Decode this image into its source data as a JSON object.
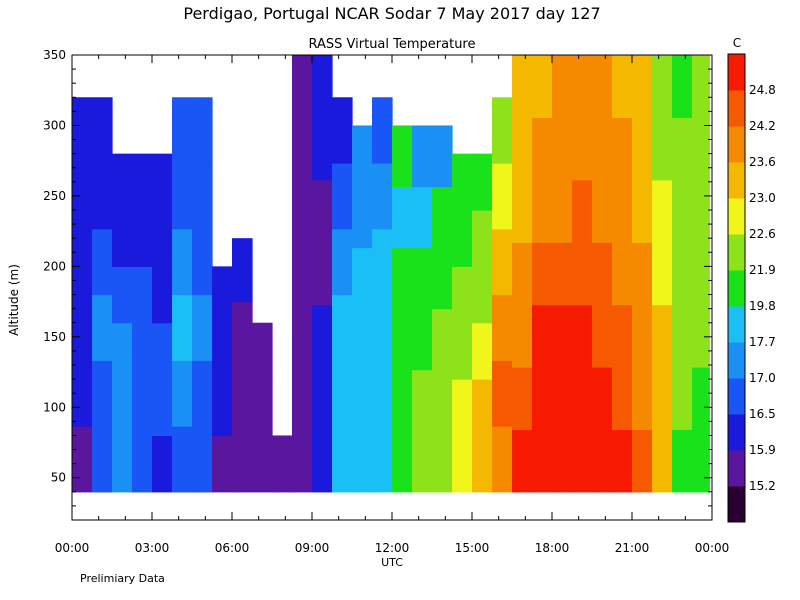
{
  "chart_data": {
    "type": "heatmap",
    "title": "Perdigao, Portugal  NCAR Sodar   7 May 2017  day 127",
    "subtitle": "RASS Virtual Temperature",
    "xlabel": "UTC",
    "ylabel": "Altitude (m)",
    "footnote": "Prelimiary Data",
    "xlim": [
      0,
      24
    ],
    "ylim": [
      20,
      350
    ],
    "x_ticks": [
      "00:00",
      "03:00",
      "06:00",
      "09:00",
      "12:00",
      "15:00",
      "18:00",
      "21:00",
      "00:00"
    ],
    "y_ticks": [
      50,
      100,
      150,
      200,
      250,
      300,
      350
    ],
    "colorbar": {
      "unit": "C",
      "labels": [
        "15.2",
        "15.9",
        "16.5",
        "17.0",
        "17.7",
        "19.8",
        "21.9",
        "22.6",
        "23.0",
        "23.6",
        "24.2",
        "24.8"
      ],
      "colors": [
        "#2a0033",
        "#5a169e",
        "#1a1adc",
        "#1a55f5",
        "#1a90f5",
        "#1ac0f5",
        "#1ae21a",
        "#8ee21a",
        "#f0f51a",
        "#f5b800",
        "#f58a00",
        "#f55a00",
        "#f51a00"
      ]
    },
    "data_bottom_altitude": 40,
    "columns": [
      {
        "x": 0.0,
        "top": 320,
        "values": [
          15.2,
          15.9,
          15.9,
          15.9,
          15.9,
          15.9
        ]
      },
      {
        "x": 0.75,
        "top": 320,
        "values": [
          16.5,
          16.5,
          17.0,
          16.5,
          15.9,
          15.9
        ]
      },
      {
        "x": 1.5,
        "top": 280,
        "values": [
          17.0,
          17.0,
          17.0,
          16.5,
          15.9,
          15.9
        ]
      },
      {
        "x": 2.25,
        "top": 280,
        "values": [
          16.5,
          16.5,
          16.5,
          16.5,
          15.9,
          15.9
        ]
      },
      {
        "x": 3.0,
        "top": 280,
        "values": [
          15.9,
          16.5,
          16.5,
          15.9,
          15.9,
          15.9
        ]
      },
      {
        "x": 3.75,
        "top": 320,
        "values": [
          16.5,
          17.0,
          17.7,
          17.0,
          16.5,
          16.5
        ]
      },
      {
        "x": 4.5,
        "top": 320,
        "values": [
          16.5,
          16.5,
          17.0,
          16.5,
          16.5,
          16.5
        ]
      },
      {
        "x": 5.25,
        "top": 200,
        "values": [
          15.2,
          15.9,
          15.9,
          15.9
        ]
      },
      {
        "x": 6.0,
        "top": 220,
        "values": [
          15.2,
          15.2,
          15.2,
          15.9
        ]
      },
      {
        "x": 6.75,
        "top": 160,
        "values": [
          15.2,
          15.2,
          15.2
        ]
      },
      {
        "x": 7.5,
        "top": 80,
        "values": [
          15.2,
          15.2
        ]
      },
      {
        "x": 8.25,
        "top": 350,
        "values": [
          15.2,
          15.2,
          15.2,
          15.2,
          15.2,
          15.2,
          15.2
        ]
      },
      {
        "x": 9.0,
        "top": 350,
        "values": [
          15.9,
          15.9,
          15.9,
          15.2,
          15.2,
          15.9,
          15.9
        ]
      },
      {
        "x": 9.75,
        "top": 320,
        "values": [
          17.7,
          17.7,
          17.7,
          17.0,
          16.5,
          15.9
        ]
      },
      {
        "x": 10.5,
        "top": 300,
        "values": [
          17.7,
          17.7,
          17.7,
          17.7,
          17.0,
          17.0
        ]
      },
      {
        "x": 11.25,
        "top": 320,
        "values": [
          17.7,
          17.7,
          17.7,
          17.7,
          17.0,
          16.5
        ]
      },
      {
        "x": 12.0,
        "top": 300,
        "values": [
          19.8,
          19.8,
          19.8,
          19.8,
          17.7,
          19.8
        ]
      },
      {
        "x": 12.75,
        "top": 300,
        "values": [
          21.9,
          21.9,
          19.8,
          19.8,
          17.7,
          17.0
        ]
      },
      {
        "x": 13.5,
        "top": 300,
        "values": [
          21.9,
          21.9,
          21.9,
          19.8,
          19.8,
          17.0
        ]
      },
      {
        "x": 14.25,
        "top": 280,
        "values": [
          22.6,
          22.6,
          21.9,
          21.9,
          19.8,
          19.8
        ]
      },
      {
        "x": 15.0,
        "top": 280,
        "values": [
          23.0,
          23.0,
          22.6,
          21.9,
          21.9,
          19.8
        ]
      },
      {
        "x": 15.75,
        "top": 320,
        "values": [
          23.6,
          24.2,
          23.6,
          23.0,
          22.6,
          21.9
        ]
      },
      {
        "x": 16.5,
        "top": 350,
        "values": [
          24.8,
          24.2,
          23.6,
          23.6,
          23.0,
          23.0,
          23.0
        ]
      },
      {
        "x": 17.25,
        "top": 350,
        "values": [
          24.8,
          24.8,
          24.8,
          24.2,
          23.6,
          23.6,
          23.0
        ]
      },
      {
        "x": 18.0,
        "top": 350,
        "values": [
          24.8,
          24.8,
          24.8,
          24.2,
          23.6,
          23.6,
          23.6
        ]
      },
      {
        "x": 18.75,
        "top": 350,
        "values": [
          24.8,
          24.8,
          24.8,
          24.2,
          24.2,
          23.6,
          23.6
        ]
      },
      {
        "x": 19.5,
        "top": 350,
        "values": [
          24.8,
          24.8,
          24.2,
          24.2,
          23.6,
          23.6,
          23.6
        ]
      },
      {
        "x": 20.25,
        "top": 350,
        "values": [
          24.8,
          24.2,
          24.2,
          23.6,
          23.6,
          23.6,
          23.0
        ]
      },
      {
        "x": 21.0,
        "top": 350,
        "values": [
          24.2,
          23.6,
          23.6,
          23.6,
          23.0,
          23.0,
          23.0
        ]
      },
      {
        "x": 21.75,
        "top": 350,
        "values": [
          23.0,
          23.0,
          23.0,
          22.6,
          22.6,
          21.9,
          21.9
        ]
      },
      {
        "x": 22.5,
        "top": 350,
        "values": [
          19.8,
          21.9,
          21.9,
          21.9,
          21.9,
          21.9,
          19.8
        ]
      },
      {
        "x": 23.25,
        "top": 350,
        "values": [
          19.8,
          19.8,
          21.9,
          21.9,
          21.9,
          21.9,
          21.9
        ]
      }
    ]
  }
}
